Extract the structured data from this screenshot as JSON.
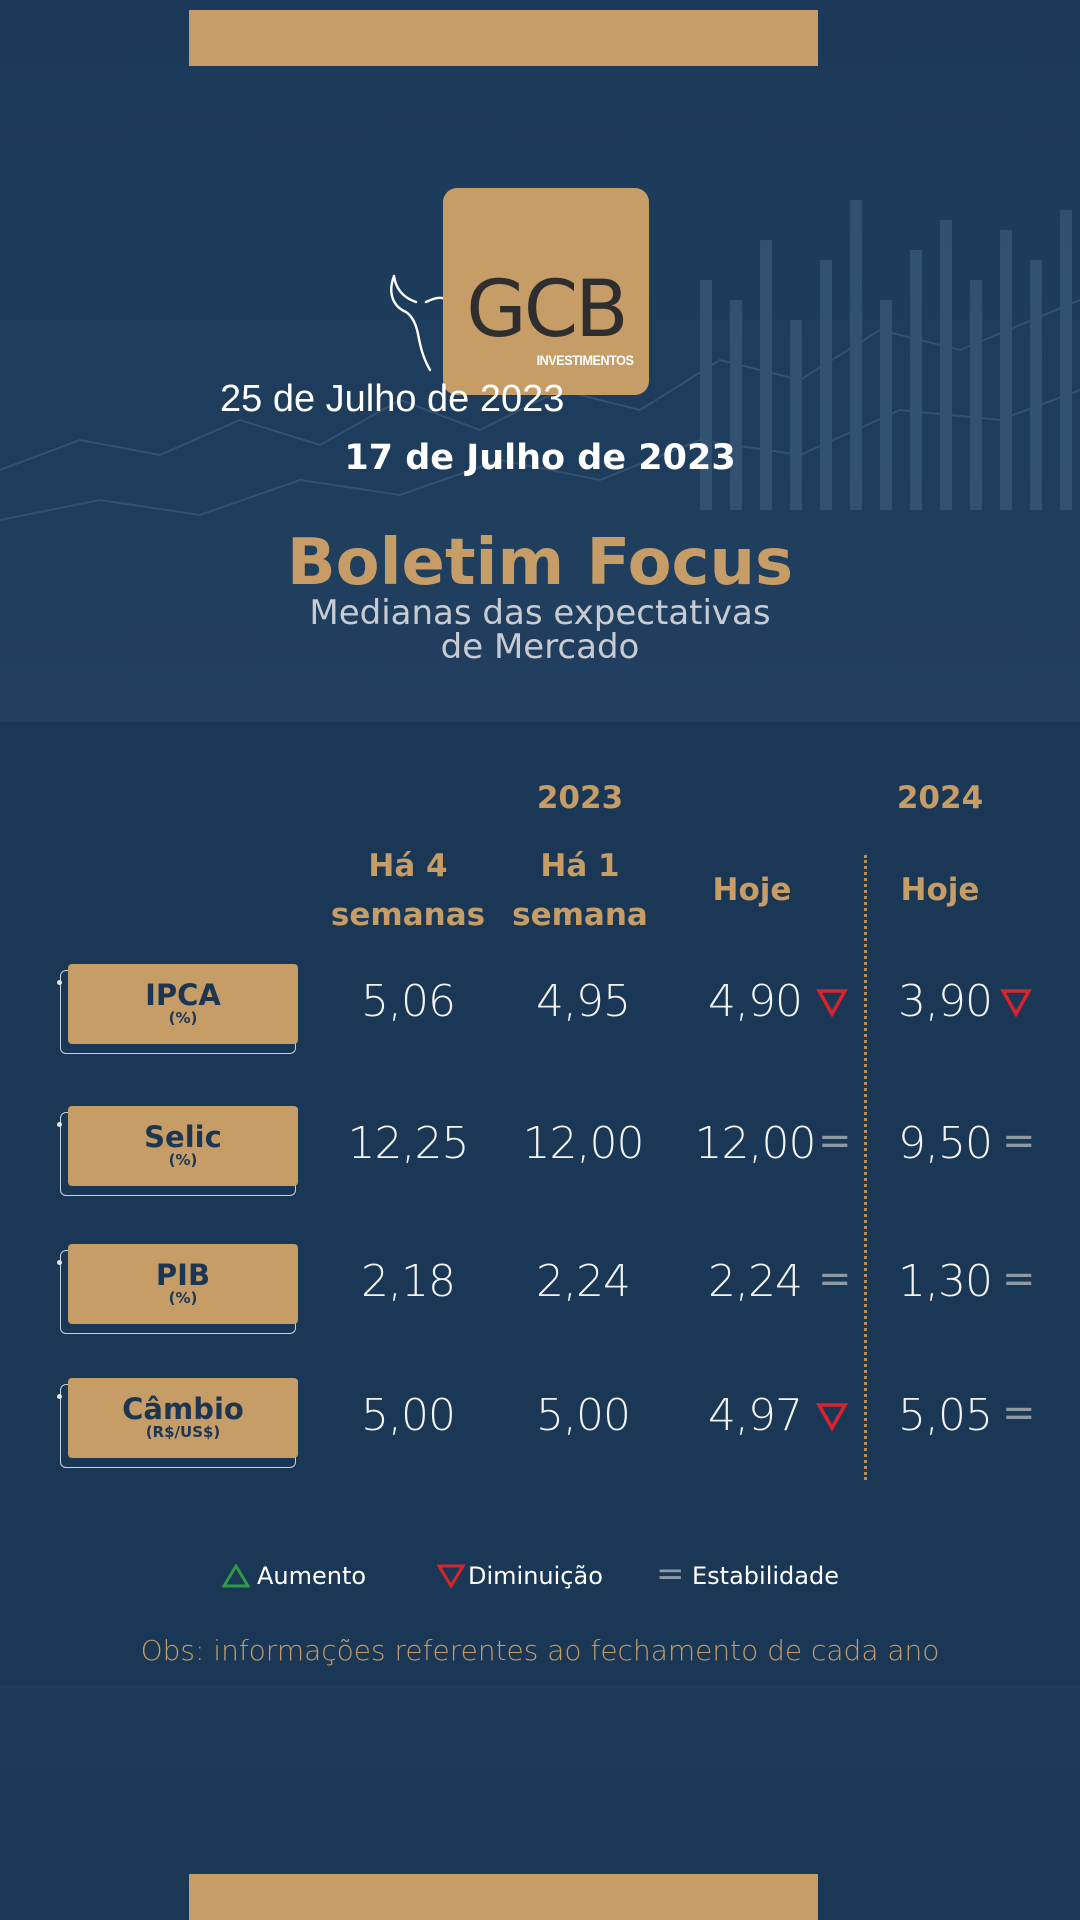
{
  "header": {
    "date_overlay": "25 de Julho de 2023",
    "date": "17 de Julho de 2023",
    "title": "Boletim Focus",
    "subtitle_line1": "Medianas das expectativas",
    "subtitle_line2": "de Mercado"
  },
  "logo": {
    "text": "GCB",
    "sub": "INVESTIMENTOS"
  },
  "table": {
    "year_2023": "2023",
    "year_2024": "2024",
    "col_4w": "Há 4 semanas",
    "col_4w_l1": "Há 4",
    "col_4w_l2": "semanas",
    "col_1w_l1": "Há 1",
    "col_1w_l2": "semana",
    "col_today": "Hoje",
    "col_today_2024": "Hoje",
    "rows": [
      {
        "label": "IPCA",
        "unit": "(%)",
        "w4": "5,06",
        "w1": "4,95",
        "today": "4,90",
        "trend_today": "down",
        "next": "3,90",
        "trend_next": "down"
      },
      {
        "label": "Selic",
        "unit": "(%)",
        "w4": "12,25",
        "w1": "12,00",
        "today": "12,00",
        "trend_today": "equal",
        "next": "9,50",
        "trend_next": "equal"
      },
      {
        "label": "PIB",
        "unit": "(%)",
        "w4": "2,18",
        "w1": "2,24",
        "today": "2,24",
        "trend_today": "equal",
        "next": "1,30",
        "trend_next": "equal"
      },
      {
        "label": "Câmbio",
        "unit": "(R$/US$)",
        "w4": "5,00",
        "w1": "5,00",
        "today": "4,97",
        "trend_today": "down",
        "next": "5,05",
        "trend_next": "equal"
      }
    ]
  },
  "legend": {
    "up": "Aumento",
    "down": "Diminuição",
    "equal": "Estabilidade"
  },
  "note": "Obs: informações referentes ao fechamento de cada ano",
  "colors": {
    "gold": "#c69d67",
    "navy": "#1a3755",
    "down": "#d9232e",
    "up": "#2e9a48",
    "equal": "#8e99a6"
  }
}
